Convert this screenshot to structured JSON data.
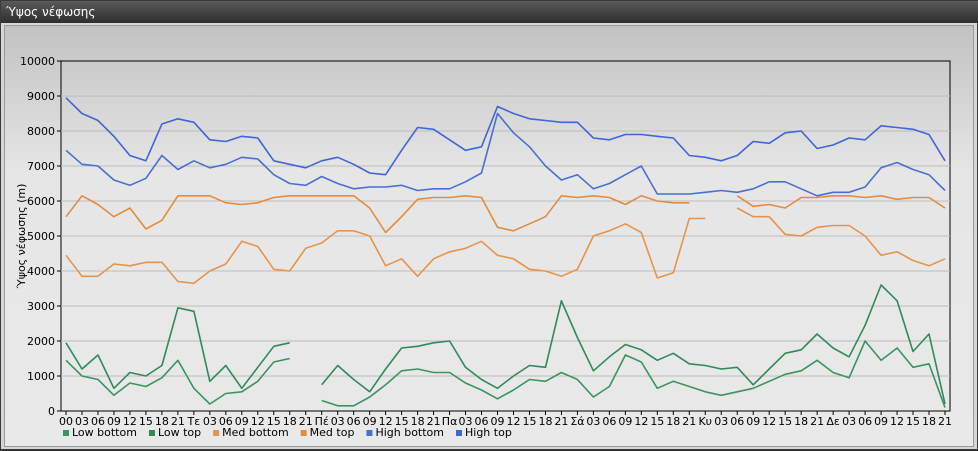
{
  "window": {
    "title": "Ύψος νέφωσης"
  },
  "chart_data": {
    "type": "line",
    "title": "",
    "ylabel": "Ύψος νέφωσης (m)",
    "xlabel": "",
    "ylim": [
      0,
      10000
    ],
    "yticks": [
      0,
      1000,
      2000,
      3000,
      4000,
      5000,
      6000,
      7000,
      8000,
      9000,
      10000
    ],
    "grid": true,
    "legend_position": "bottom-left",
    "x_labels": [
      "00",
      "03",
      "06",
      "09",
      "12",
      "15",
      "18",
      "21",
      "Τε",
      "03",
      "06",
      "09",
      "12",
      "15",
      "18",
      "21",
      "Πέ",
      "03",
      "06",
      "09",
      "12",
      "15",
      "18",
      "21",
      "Πα",
      "03",
      "06",
      "09",
      "12",
      "15",
      "18",
      "21",
      "Σά",
      "03",
      "06",
      "09",
      "12",
      "15",
      "18",
      "21",
      "Κυ",
      "03",
      "06",
      "09",
      "12",
      "15",
      "18",
      "21",
      "Δε",
      "03",
      "06",
      "09",
      "12",
      "15",
      "18",
      "21"
    ],
    "series": [
      {
        "name": "Low bottom",
        "color": "#3a9460",
        "values": [
          1450,
          1000,
          900,
          450,
          800,
          700,
          950,
          1450,
          650,
          200,
          500,
          550,
          850,
          1400,
          1500,
          null,
          300,
          150,
          150,
          400,
          750,
          1150,
          1200,
          1100,
          1100,
          800,
          600,
          350,
          600,
          900,
          850,
          1100,
          900,
          400,
          700,
          1600,
          1400,
          650,
          850,
          700,
          550,
          450,
          550,
          650,
          850,
          1050,
          1150,
          1450,
          1100,
          950,
          2000,
          1450,
          1800,
          1250,
          1350,
          100
        ]
      },
      {
        "name": "Low top",
        "color": "#2f8a5a",
        "values": [
          1950,
          1200,
          1600,
          650,
          1100,
          1000,
          1300,
          2950,
          2850,
          850,
          1300,
          650,
          1250,
          1850,
          1950,
          null,
          750,
          1300,
          900,
          550,
          1200,
          1800,
          1850,
          1950,
          2000,
          1250,
          900,
          650,
          1000,
          1300,
          1250,
          3150,
          2100,
          1150,
          1550,
          1900,
          1750,
          1450,
          1650,
          1350,
          1300,
          1200,
          1250,
          750,
          1200,
          1650,
          1750,
          2200,
          1800,
          1550,
          2450,
          3600,
          3150,
          1700,
          2200,
          200
        ]
      },
      {
        "name": "Med bottom",
        "color": "#e6944a",
        "values": [
          4450,
          3850,
          3850,
          4200,
          4150,
          4250,
          4250,
          3700,
          3650,
          4000,
          4200,
          4850,
          4700,
          4050,
          4000,
          4650,
          4800,
          5150,
          5150,
          5000,
          4150,
          4350,
          3850,
          4350,
          4550,
          4650,
          4850,
          4450,
          4350,
          4050,
          4000,
          3850,
          4050,
          5000,
          5150,
          5350,
          5100,
          3800,
          3950,
          5500,
          5500,
          null,
          5800,
          5550,
          5550,
          5050,
          5000,
          5250,
          5300,
          5300,
          5000,
          4450,
          4550,
          4300,
          4150,
          4350
        ]
      },
      {
        "name": "Med top",
        "color": "#e68a3c",
        "values": [
          5550,
          6150,
          5900,
          5550,
          5800,
          5200,
          5450,
          6150,
          6150,
          6150,
          5950,
          5900,
          5950,
          6100,
          6150,
          6150,
          6150,
          6150,
          6150,
          5800,
          5100,
          5550,
          6050,
          6100,
          6100,
          6150,
          6100,
          5250,
          5150,
          5350,
          5550,
          6150,
          6100,
          6150,
          6100,
          5900,
          6150,
          6000,
          5950,
          5950,
          null,
          null,
          6150,
          5850,
          5900,
          5800,
          6100,
          6100,
          6150,
          6150,
          6100,
          6150,
          6050,
          6100,
          6100,
          5800
        ]
      },
      {
        "name": "High bottom",
        "color": "#4a6fd0",
        "values": [
          7450,
          7050,
          7000,
          6600,
          6450,
          6650,
          7300,
          6900,
          7150,
          6950,
          7050,
          7250,
          7200,
          6750,
          6500,
          6450,
          6700,
          6500,
          6350,
          6400,
          6400,
          6450,
          6300,
          6350,
          6350,
          6550,
          6800,
          8500,
          7950,
          7550,
          7000,
          6600,
          6750,
          6350,
          6500,
          6750,
          7000,
          6200,
          6200,
          6200,
          6250,
          6300,
          6250,
          6350,
          6550,
          6550,
          6350,
          6150,
          6250,
          6250,
          6400,
          6950,
          7100,
          6900,
          6750,
          6300
        ]
      },
      {
        "name": "High top",
        "color": "#3f66d6",
        "values": [
          8950,
          8500,
          8300,
          7850,
          7300,
          7150,
          8200,
          8350,
          8250,
          7750,
          7700,
          7850,
          7800,
          7150,
          7050,
          6950,
          7150,
          7250,
          7050,
          6800,
          6750,
          7450,
          8100,
          8050,
          7750,
          7450,
          7550,
          8700,
          8500,
          8350,
          8300,
          8250,
          8250,
          7800,
          7750,
          7900,
          7900,
          7850,
          7800,
          7300,
          7250,
          7150,
          7300,
          7700,
          7650,
          7950,
          8000,
          7500,
          7600,
          7800,
          7750,
          8150,
          8100,
          8050,
          7900,
          7150
        ]
      }
    ]
  }
}
